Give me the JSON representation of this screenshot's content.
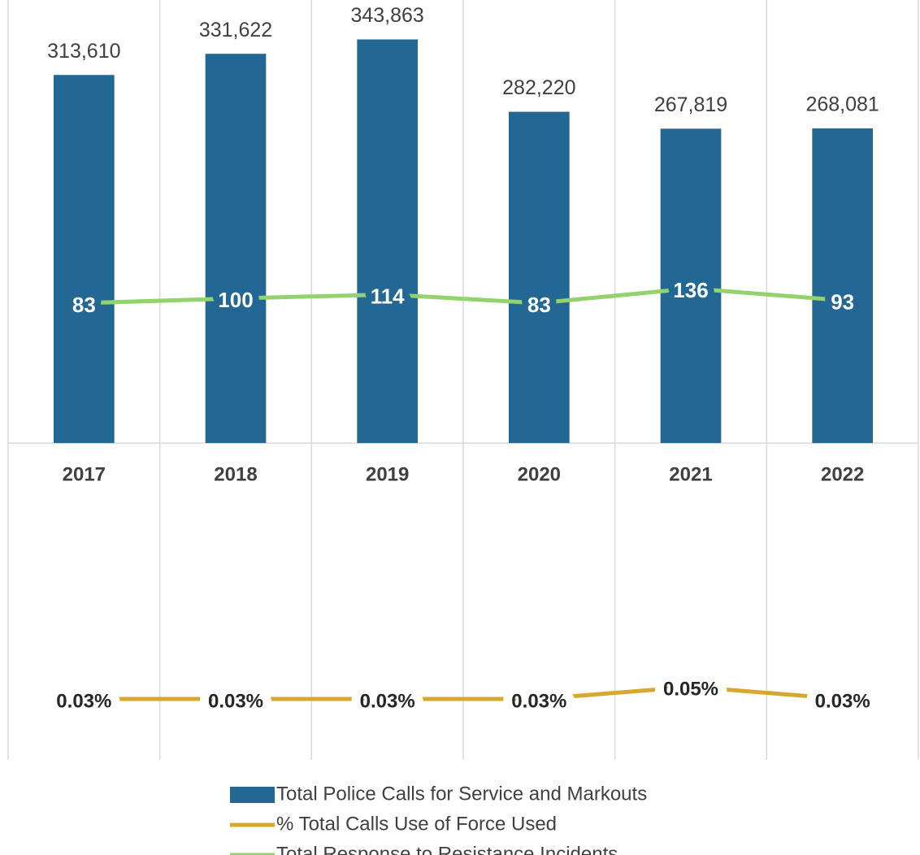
{
  "chart_data": {
    "type": "bar",
    "categories": [
      "2017",
      "2018",
      "2019",
      "2020",
      "2021",
      "2022"
    ],
    "ylim": [
      -270000,
      374000
    ],
    "y2lim": [
      -1570,
      1165
    ],
    "y3lim": [
      -0.07,
      1.17
    ],
    "grid": true,
    "legend": "bottom",
    "series": [
      {
        "name": "Total Police Calls for Service and Markouts",
        "type": "bar",
        "color": "#236895",
        "values": [
          313610,
          331622,
          343863,
          282220,
          267819,
          268081
        ],
        "value_labels": [
          "313,610",
          "331,622",
          "343,863",
          "282,220",
          "267,819",
          "268,081"
        ]
      },
      {
        "name": "% Total Calls Use of Force Used",
        "type": "line",
        "axis": "y3",
        "color": "#d6a82e",
        "values": [
          0.03,
          0.03,
          0.03,
          0.03,
          0.05,
          0.03
        ],
        "value_labels": [
          "0.03%",
          "0.03%",
          "0.03%",
          "0.03%",
          "0.05%",
          "0.03%"
        ]
      },
      {
        "name": "Total Response to Resistance  Incidents",
        "type": "line",
        "axis": "y2",
        "color": "#92d36e",
        "values": [
          83,
          100,
          114,
          83,
          136,
          93
        ]
      }
    ]
  }
}
